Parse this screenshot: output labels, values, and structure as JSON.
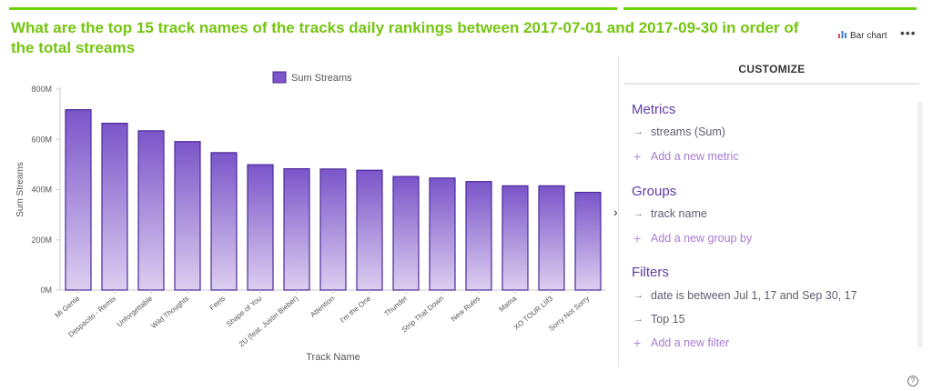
{
  "title": "What are the top 15 track names of the tracks daily rankings between 2017-07-01 and 2017-09-30 in order of the total streams",
  "chart_type_label": "Bar chart",
  "chart_type_icon": "bar-chart-icon",
  "more_label": "•••",
  "panel": {
    "header": "CUSTOMIZE",
    "metrics_title": "Metrics",
    "metrics": [
      "streams (Sum)"
    ],
    "add_metric": "Add a new metric",
    "groups_title": "Groups",
    "groups": [
      "track name"
    ],
    "add_group": "Add a new group by",
    "filters_title": "Filters",
    "filters": [
      "date is between Jul 1, 17 and Sep 30, 17",
      "Top 15"
    ],
    "add_filter": "Add a new filter"
  },
  "help_label": "?",
  "expander_label": "›",
  "colors": {
    "accent": "#74c50f",
    "bar_top": "#7b55c9",
    "bar_bottom": "#dccef0",
    "bar_stroke": "#4b2a9c",
    "section": "#5e3aa6"
  },
  "chart_data": {
    "type": "bar",
    "title": "",
    "legend": "Sum Streams",
    "legend_position": "top",
    "xlabel": "Track Name",
    "ylabel": "Sum Streams",
    "ylim": [
      0,
      800000000
    ],
    "yticks": [
      0,
      200000000,
      400000000,
      600000000,
      800000000
    ],
    "ytick_labels": [
      "0M",
      "200M",
      "400M",
      "600M",
      "800M"
    ],
    "grid": false,
    "categories": [
      "Mi Gente",
      "Despacito - Remix",
      "Unforgettable",
      "Wild Thoughts",
      "Feels",
      "Shape of You",
      "2U (feat. Justin Bieber)",
      "Attention",
      "I'm the One",
      "Thunder",
      "Strip That Down",
      "New Rules",
      "Mama",
      "XO TOUR Llif3",
      "Sorry Not Sorry"
    ],
    "series": [
      {
        "name": "Sum Streams",
        "values": [
          718000000,
          664000000,
          634000000,
          591000000,
          547000000,
          499000000,
          483000000,
          482000000,
          477000000,
          452000000,
          446000000,
          432000000,
          415000000,
          415000000,
          389000000
        ]
      }
    ]
  }
}
